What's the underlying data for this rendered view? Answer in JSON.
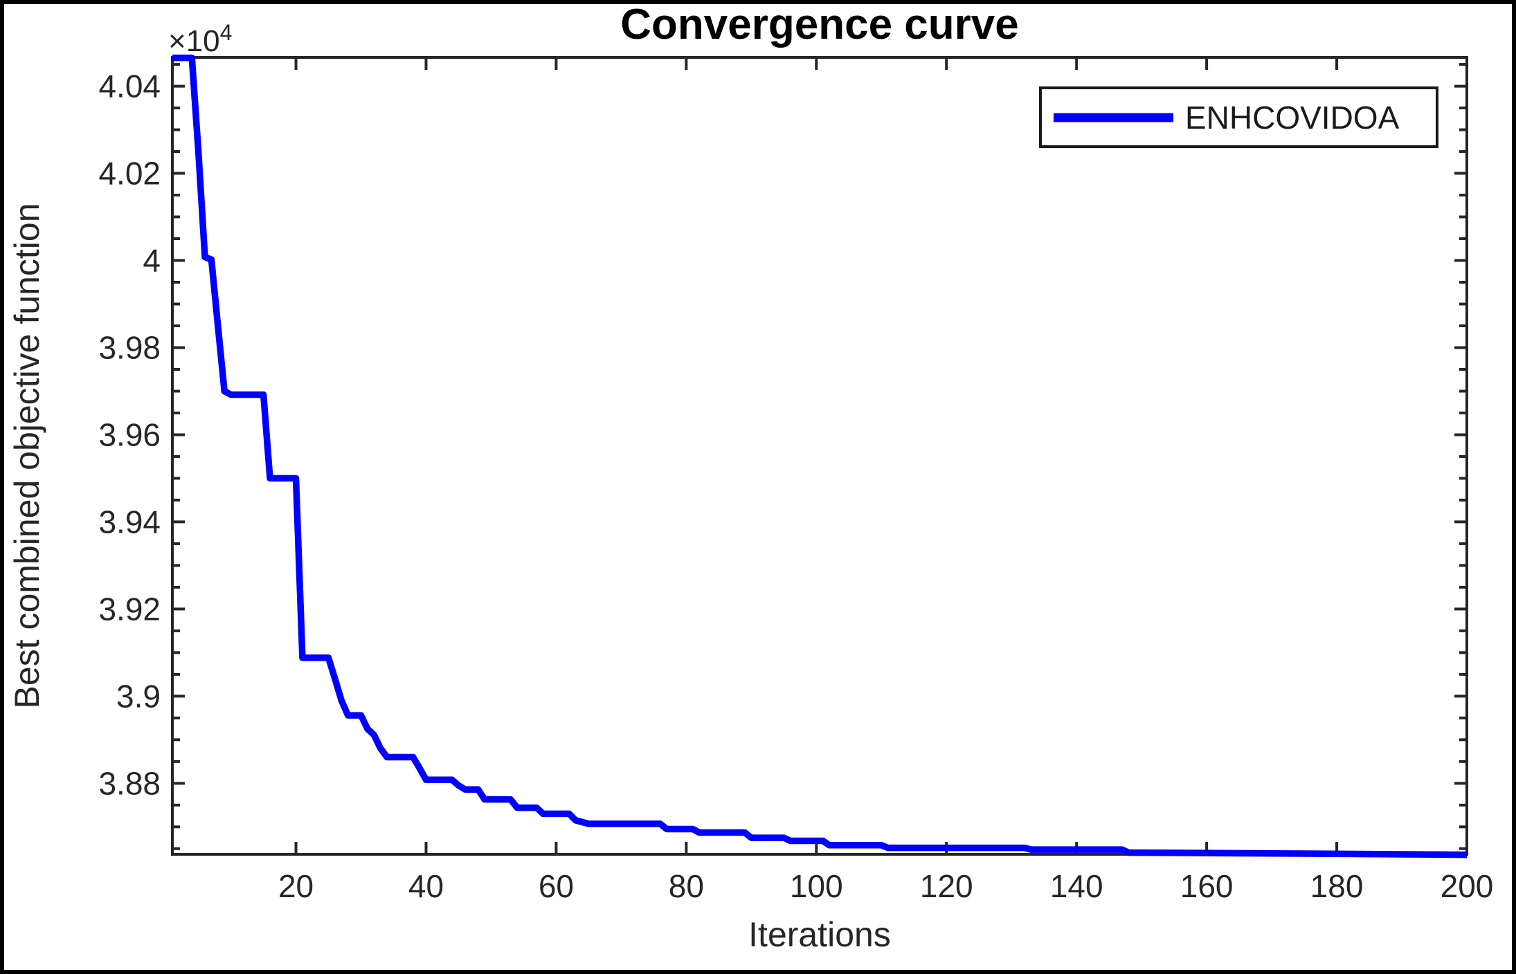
{
  "figure": {
    "title": "Convergence curve",
    "x_axis_label": "Iterations",
    "y_axis_label": "Best combined objective function",
    "y_multiplier_base": "×10",
    "y_multiplier_exponent": "4",
    "legend": {
      "entries": [
        {
          "label": "ENHCOVIDOA",
          "color": "#0000ff"
        }
      ]
    },
    "colors": {
      "curve": "#0000ff",
      "axis": "#262626",
      "tick_label": "#262626",
      "title": "#000000",
      "background": "#ffffff",
      "frame": "#000000"
    }
  },
  "chart_data": {
    "type": "line",
    "title": "Convergence curve",
    "xlabel": "Iterations",
    "ylabel": "Best combined objective function",
    "y_display_note": "y tick labels are value / 10^4 (axis shows ×10^4 multiplier)",
    "xlim": [
      1,
      200
    ],
    "ylim": [
      38637,
      40466
    ],
    "x_ticks": [
      20,
      40,
      60,
      80,
      100,
      120,
      140,
      160,
      180,
      200
    ],
    "x_tick_labels": [
      "20",
      "40",
      "60",
      "80",
      "100",
      "120",
      "140",
      "160",
      "180",
      "200"
    ],
    "y_ticks": [
      38800,
      39000,
      39200,
      39400,
      39600,
      39800,
      40000,
      40200,
      40400
    ],
    "y_tick_labels": [
      "3.88",
      "3.9",
      "3.92",
      "3.94",
      "3.96",
      "3.98",
      "4",
      "4.02",
      "4.04"
    ],
    "y_minor_tick_step": 50,
    "x_minor_ticks": false,
    "grid": false,
    "legend_position": "northeast",
    "series": [
      {
        "name": "ENHCOVIDOA",
        "color": "#0000ff",
        "points": [
          [
            1,
            40465
          ],
          [
            4,
            40465
          ],
          [
            5,
            40250
          ],
          [
            6,
            40008
          ],
          [
            7,
            40002
          ],
          [
            8,
            39850
          ],
          [
            9,
            39700
          ],
          [
            10,
            39692
          ],
          [
            15,
            39692
          ],
          [
            16,
            39500
          ],
          [
            20,
            39500
          ],
          [
            21,
            39088
          ],
          [
            25,
            39088
          ],
          [
            26,
            39040
          ],
          [
            27,
            38990
          ],
          [
            28,
            38956
          ],
          [
            30,
            38956
          ],
          [
            31,
            38925
          ],
          [
            32,
            38911
          ],
          [
            33,
            38880
          ],
          [
            34,
            38860
          ],
          [
            38,
            38860
          ],
          [
            39,
            38835
          ],
          [
            40,
            38808
          ],
          [
            44,
            38808
          ],
          [
            45,
            38795
          ],
          [
            46,
            38786
          ],
          [
            48,
            38786
          ],
          [
            49,
            38763
          ],
          [
            53,
            38763
          ],
          [
            54,
            38744
          ],
          [
            57,
            38744
          ],
          [
            58,
            38730
          ],
          [
            62,
            38730
          ],
          [
            63,
            38715
          ],
          [
            65,
            38707
          ],
          [
            76,
            38707
          ],
          [
            77,
            38695
          ],
          [
            81,
            38695
          ],
          [
            82,
            38687
          ],
          [
            89,
            38687
          ],
          [
            90,
            38675
          ],
          [
            95,
            38675
          ],
          [
            96,
            38668
          ],
          [
            101,
            38668
          ],
          [
            102,
            38658
          ],
          [
            110,
            38658
          ],
          [
            111,
            38652
          ],
          [
            132,
            38652
          ],
          [
            133,
            38648
          ],
          [
            147,
            38648
          ],
          [
            148,
            38641
          ],
          [
            160,
            38640
          ],
          [
            200,
            38636
          ]
        ]
      }
    ]
  }
}
